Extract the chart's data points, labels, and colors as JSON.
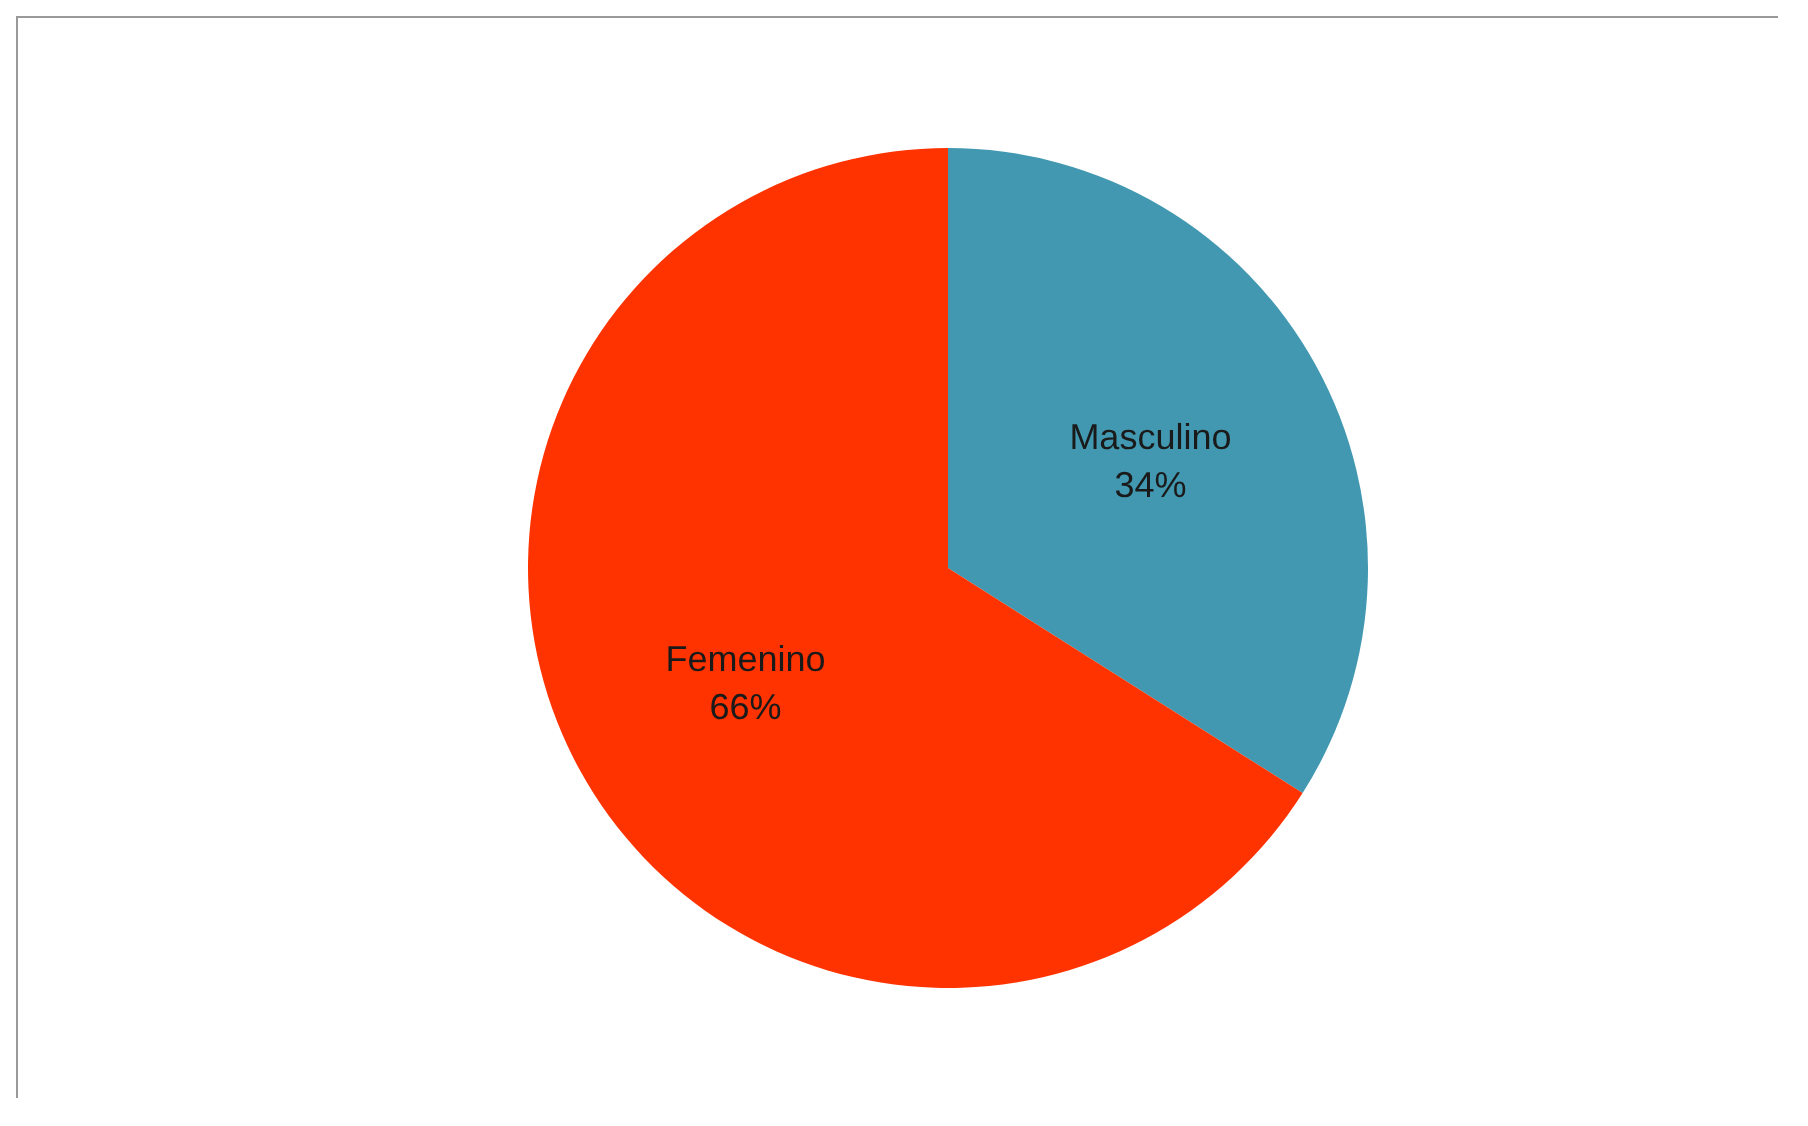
{
  "chart_data": {
    "type": "pie",
    "categories": [
      "Masculino",
      "Femenino"
    ],
    "values": [
      34,
      66
    ],
    "colors": [
      "#4198b0",
      "#ff3300"
    ],
    "value_labels": [
      "34%",
      "66%"
    ],
    "legend": false
  }
}
